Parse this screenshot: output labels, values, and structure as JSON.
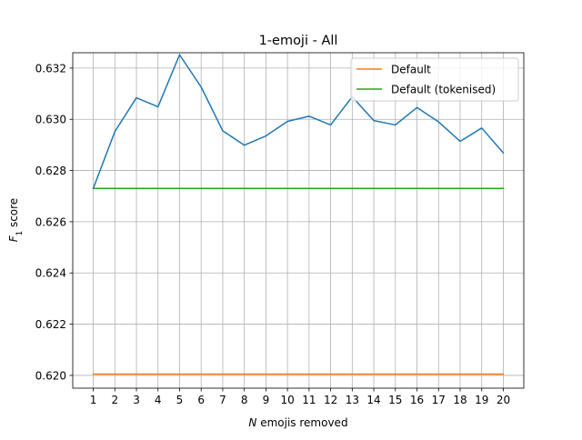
{
  "chart_data": {
    "type": "line",
    "title": "1-emoji - All",
    "xlabel_italic": "N",
    "xlabel_rest": " emojis removed",
    "ylabel_main": "F",
    "ylabel_sub": "1",
    "ylabel_rest": " score",
    "x": [
      1,
      2,
      3,
      4,
      5,
      6,
      7,
      8,
      9,
      10,
      11,
      12,
      13,
      14,
      15,
      16,
      17,
      18,
      19,
      20
    ],
    "xlim": [
      0.05,
      20.95
    ],
    "ylim": [
      0.6195,
      0.6326
    ],
    "yticks": [
      0.62,
      0.622,
      0.624,
      0.626,
      0.628,
      0.63,
      0.632
    ],
    "ytick_labels": [
      "0.620",
      "0.622",
      "0.624",
      "0.626",
      "0.628",
      "0.630",
      "0.632"
    ],
    "grid": true,
    "legend_position": "top-right",
    "series": [
      {
        "values": [
          0.6273,
          0.62952,
          0.63084,
          0.63049,
          0.63252,
          0.63126,
          0.62955,
          0.62899,
          0.62935,
          0.62992,
          0.63012,
          0.62978,
          0.63088,
          0.62995,
          0.62978,
          0.63046,
          0.6299,
          0.62914,
          0.62966,
          0.62869
        ],
        "color": "#1f77b4"
      },
      {
        "name": "Default",
        "values": [
          0.62005,
          0.62005,
          0.62005,
          0.62005,
          0.62005,
          0.62005,
          0.62005,
          0.62005,
          0.62005,
          0.62005,
          0.62005,
          0.62005,
          0.62005,
          0.62005,
          0.62005,
          0.62005,
          0.62005,
          0.62005,
          0.62005,
          0.62005
        ],
        "color": "#ff7f0e"
      },
      {
        "name": "Default (tokenised)",
        "values": [
          0.6273,
          0.6273,
          0.6273,
          0.6273,
          0.6273,
          0.6273,
          0.6273,
          0.6273,
          0.6273,
          0.6273,
          0.6273,
          0.6273,
          0.6273,
          0.6273,
          0.6273,
          0.6273,
          0.6273,
          0.6273,
          0.6273,
          0.6273
        ],
        "color": "#2ca02c"
      }
    ]
  }
}
